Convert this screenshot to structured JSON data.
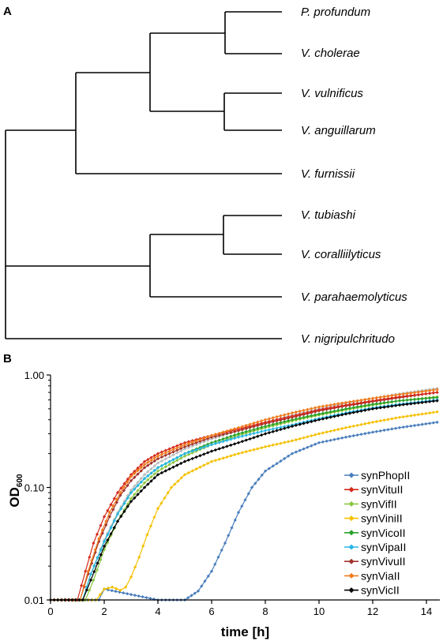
{
  "panels": {
    "a": "A",
    "b": "B"
  },
  "tree": {
    "taxa": [
      "P. profundum",
      "V. cholerae",
      "V. vulnificus",
      "V. anguillarum",
      "V. furnissii",
      "V. tubiashi",
      "V. coralliilyticus",
      "V. parahaemolyticus",
      "V. nigripulchritudo"
    ]
  },
  "chart_data": {
    "type": "line",
    "title": "",
    "xlabel": "time [h]",
    "ylabel": "OD",
    "ylabel_sub": "600",
    "xlim": [
      0,
      14.5
    ],
    "ylim": [
      0.01,
      1.0
    ],
    "yscale": "log",
    "xticks": [
      0,
      2,
      4,
      6,
      8,
      10,
      12,
      14
    ],
    "yticks": [
      0.01,
      0.1,
      1.0
    ],
    "ytick_labels": [
      "0.01",
      "0.10",
      "1.00"
    ],
    "grid": false,
    "legend": "right",
    "series": [
      {
        "name": "synPhopII",
        "color": "#4a7ebb",
        "x": [
          0,
          1.8,
          2.0,
          4.0,
          5.0,
          5.5,
          6.0,
          6.5,
          7.0,
          7.5,
          8.0,
          9.0,
          10.0,
          11.0,
          12.0,
          13.0,
          14.4
        ],
        "y": [
          0.01,
          0.01,
          0.0125,
          0.01,
          0.01,
          0.012,
          0.018,
          0.032,
          0.06,
          0.1,
          0.14,
          0.2,
          0.25,
          0.28,
          0.31,
          0.34,
          0.38
        ]
      },
      {
        "name": "synVituII",
        "color": "#d42a1e",
        "x": [
          0,
          1.0,
          1.3,
          1.6,
          2.0,
          2.5,
          3.0,
          3.5,
          4.0,
          5.0,
          6.0,
          7.0,
          8.0,
          9.0,
          10.0,
          11.0,
          12.0,
          13.0,
          14.4
        ],
        "y": [
          0.01,
          0.01,
          0.018,
          0.032,
          0.055,
          0.09,
          0.13,
          0.17,
          0.2,
          0.25,
          0.29,
          0.33,
          0.38,
          0.43,
          0.49,
          0.54,
          0.59,
          0.64,
          0.7
        ]
      },
      {
        "name": "synVifII",
        "color": "#8dc641",
        "x": [
          0,
          1.3,
          1.6,
          2.0,
          2.5,
          3.0,
          3.5,
          4.0,
          5.0,
          6.0,
          7.0,
          8.0,
          9.0,
          10.0,
          11.0,
          12.0,
          13.0,
          14.4
        ],
        "y": [
          0.01,
          0.01,
          0.015,
          0.028,
          0.05,
          0.08,
          0.11,
          0.14,
          0.19,
          0.24,
          0.29,
          0.34,
          0.39,
          0.44,
          0.49,
          0.54,
          0.59,
          0.64
        ]
      },
      {
        "name": "synViniII",
        "color": "#f5c000",
        "x": [
          0,
          1.7,
          2.0,
          2.3,
          2.6,
          2.8,
          3.0,
          3.3,
          3.6,
          4.0,
          4.5,
          5.0,
          6.0,
          7.0,
          8.0,
          9.0,
          10.0,
          11.0,
          12.0,
          13.0,
          14.4
        ],
        "y": [
          0.01,
          0.01,
          0.0125,
          0.013,
          0.0122,
          0.013,
          0.016,
          0.024,
          0.038,
          0.065,
          0.1,
          0.13,
          0.17,
          0.2,
          0.23,
          0.26,
          0.3,
          0.34,
          0.38,
          0.42,
          0.47
        ]
      },
      {
        "name": "synVicoII",
        "color": "#2aa02a",
        "x": [
          0,
          1.2,
          1.5,
          2.0,
          2.5,
          3.0,
          3.5,
          4.0,
          5.0,
          6.0,
          7.0,
          8.0,
          9.0,
          10.0,
          11.0,
          12.0,
          13.0,
          14.4
        ],
        "y": [
          0.01,
          0.01,
          0.017,
          0.033,
          0.058,
          0.09,
          0.12,
          0.15,
          0.2,
          0.25,
          0.3,
          0.35,
          0.4,
          0.45,
          0.5,
          0.55,
          0.59,
          0.63
        ]
      },
      {
        "name": "synVipaII",
        "color": "#29b6e8",
        "x": [
          0,
          1.2,
          1.5,
          2.0,
          2.5,
          3.0,
          3.5,
          4.0,
          5.0,
          6.0,
          7.0,
          8.0,
          9.0,
          10.0,
          11.0,
          12.0,
          13.0,
          14.4
        ],
        "y": [
          0.01,
          0.01,
          0.017,
          0.033,
          0.058,
          0.09,
          0.12,
          0.15,
          0.2,
          0.24,
          0.28,
          0.32,
          0.36,
          0.41,
          0.46,
          0.51,
          0.55,
          0.6
        ]
      },
      {
        "name": "synVivuII",
        "color": "#a0322c",
        "x": [
          0,
          1.1,
          1.4,
          1.8,
          2.2,
          2.6,
          3.0,
          3.5,
          4.0,
          5.0,
          6.0,
          7.0,
          8.0,
          9.0,
          10.0,
          11.0,
          12.0,
          13.0,
          14.4
        ],
        "y": [
          0.01,
          0.01,
          0.017,
          0.033,
          0.055,
          0.085,
          0.115,
          0.15,
          0.18,
          0.23,
          0.28,
          0.32,
          0.37,
          0.42,
          0.48,
          0.53,
          0.58,
          0.63,
          0.7
        ]
      },
      {
        "name": "synViaII",
        "color": "#f07a1a",
        "x": [
          0,
          1.1,
          1.4,
          1.8,
          2.2,
          2.6,
          3.0,
          3.5,
          4.0,
          5.0,
          6.0,
          7.0,
          8.0,
          9.0,
          10.0,
          11.0,
          12.0,
          13.0,
          14.4
        ],
        "y": [
          0.01,
          0.01,
          0.018,
          0.035,
          0.06,
          0.09,
          0.125,
          0.16,
          0.19,
          0.24,
          0.29,
          0.34,
          0.4,
          0.46,
          0.52,
          0.57,
          0.62,
          0.67,
          0.74
        ]
      },
      {
        "name": "synVicII",
        "color": "#000000",
        "x": [
          0,
          1.2,
          1.5,
          2.0,
          2.5,
          3.0,
          3.5,
          4.0,
          5.0,
          6.0,
          7.0,
          8.0,
          9.0,
          10.0,
          11.0,
          12.0,
          13.0,
          14.4
        ],
        "y": [
          0.01,
          0.01,
          0.015,
          0.03,
          0.05,
          0.075,
          0.1,
          0.13,
          0.17,
          0.21,
          0.25,
          0.3,
          0.35,
          0.4,
          0.45,
          0.5,
          0.54,
          0.59
        ]
      },
      {
        "name": "",
        "color": "#bdbdbd",
        "x": [
          0,
          1.2,
          1.5,
          2.0,
          2.5,
          3.0,
          3.5,
          4.0,
          5.0,
          6.0,
          7.0,
          8.0,
          9.0,
          10.0,
          11.0,
          12.0,
          13.0,
          14.4
        ],
        "y": [
          0.01,
          0.01,
          0.017,
          0.034,
          0.06,
          0.095,
          0.13,
          0.165,
          0.22,
          0.27,
          0.32,
          0.38,
          0.44,
          0.5,
          0.56,
          0.62,
          0.68,
          0.76
        ]
      }
    ]
  }
}
